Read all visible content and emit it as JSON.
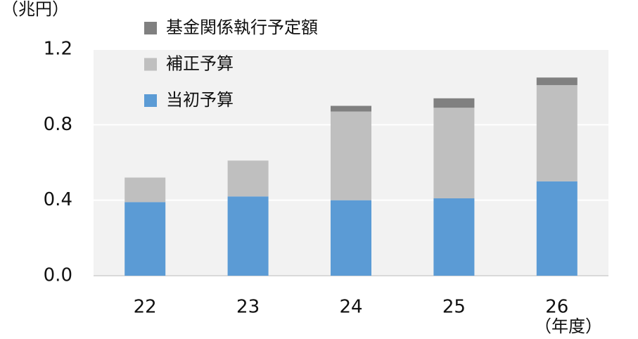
{
  "chart_data": {
    "type": "stacked_bar",
    "y_unit_label": "（兆円）",
    "x_unit_label": "（年度）",
    "categories": [
      "22",
      "23",
      "24",
      "25",
      "26"
    ],
    "series": [
      {
        "name": "当初予算",
        "color": "#5b9bd5",
        "values": [
          0.39,
          0.42,
          0.4,
          0.41,
          0.5
        ]
      },
      {
        "name": "補正予算",
        "color": "#bfbfbf",
        "values": [
          0.13,
          0.19,
          0.47,
          0.48,
          0.51
        ]
      },
      {
        "name": "基金関係執行予定額",
        "color": "#808080",
        "values": [
          null,
          null,
          0.03,
          0.05,
          0.04
        ]
      }
    ],
    "ylim": [
      0,
      1.2
    ],
    "yticks": [
      {
        "value": 0,
        "label": "0.0"
      },
      0.4,
      0.8,
      1.2
    ],
    "grid": true,
    "plot_background": "#f2f2f2"
  }
}
